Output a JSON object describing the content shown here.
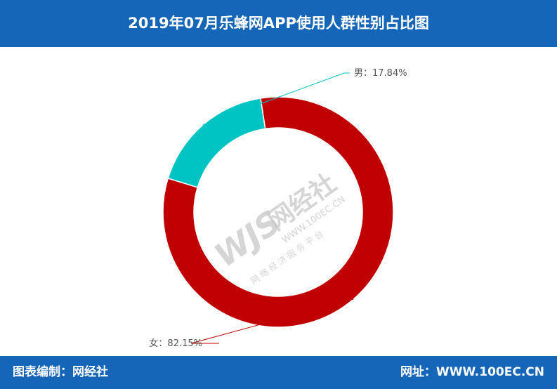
{
  "header": {
    "title": "2019年07月乐蜂网APP使用人群性别占比图"
  },
  "footer": {
    "left": "图表编制：网经社",
    "right": "网址：WWW.100EC.CN"
  },
  "watermark": {
    "logo": "WJS",
    "name": "网经社",
    "url": "WWW.100EC.CN",
    "tagline": "网 络 经 济 服 务 平 台"
  },
  "chart_data": {
    "type": "pie",
    "variant": "donut",
    "title": "2019年07月乐蜂网APP使用人群性别占比图",
    "series": [
      {
        "name": "男",
        "value": 17.84,
        "label": "男：17.84%",
        "color": "#00c4c4"
      },
      {
        "name": "女",
        "value": 82.15,
        "label": "女：82.15%",
        "color": "#c00000"
      }
    ]
  }
}
